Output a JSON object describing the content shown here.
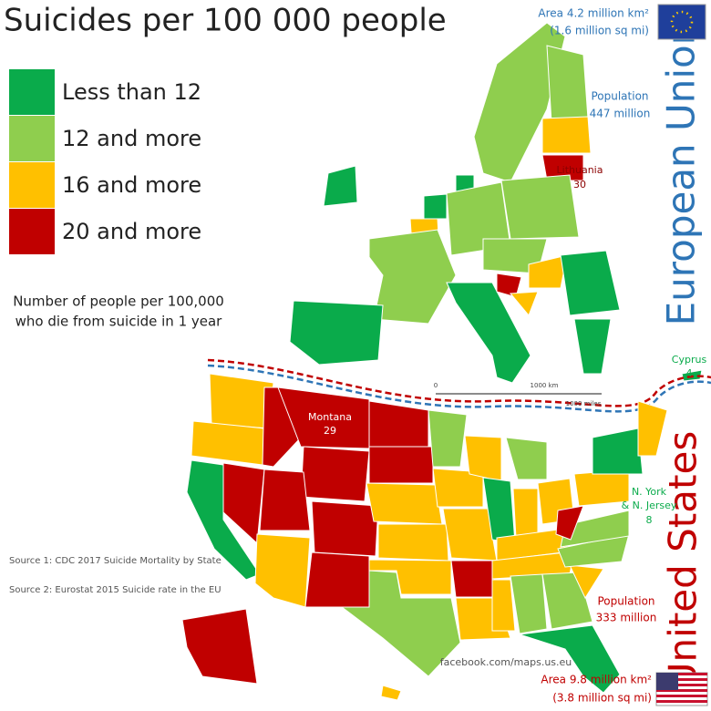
{
  "title": "Suicides per 100 000 people",
  "legend": [
    {
      "label": "Less than 12",
      "color": "#0aab4b"
    },
    {
      "label": "12 and more",
      "color": "#8fce4e"
    },
    {
      "label": "16 and more",
      "color": "#ffc000"
    },
    {
      "label": "20 and more",
      "color": "#c00000"
    }
  ],
  "note": [
    "Number of people per 100,000",
    "who die from suicide in 1 year"
  ],
  "eu": {
    "area": [
      "Area 4.2 million km²",
      "(1.6 million sq mi)"
    ],
    "population": [
      "Population",
      "447 million"
    ],
    "name": "European Union"
  },
  "us": {
    "area": [
      "Area 9.8 million km²",
      "(3.8 million sq mi)"
    ],
    "population": [
      "Population",
      "333 million"
    ],
    "name": "United States"
  },
  "callouts": [
    {
      "name": "Lithuania",
      "value": 30
    },
    {
      "name": "Cyprus",
      "value": 4
    },
    {
      "name": "Montana",
      "value": 29
    },
    {
      "name": [
        "N. York",
        "& N. Jersey"
      ],
      "value": 8
    }
  ],
  "scale": [
    "0",
    "1000 km",
    "1000 miles"
  ],
  "sources": [
    "Source 1: CDC 2017 Suicide Mortality by State",
    "Source 2: Eurostat 2015 Suicide rate in the EU"
  ],
  "credit": "facebook.com/maps.us.eu"
}
